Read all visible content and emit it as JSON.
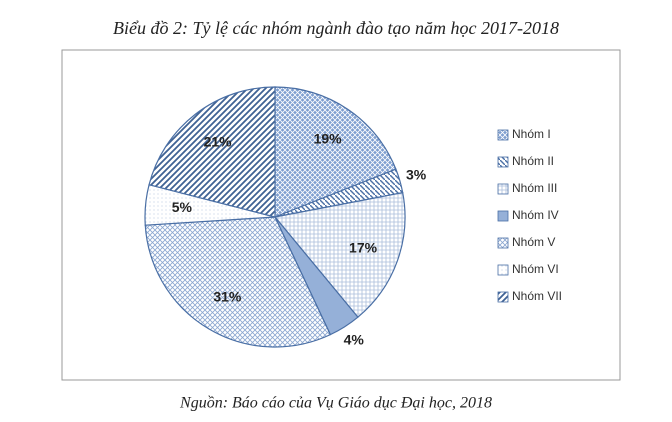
{
  "chart_data": {
    "type": "pie",
    "title": "Biểu đồ 2: Tỷ lệ các nhóm ngành đào tạo năm học 2017-2018",
    "categories": [
      "Nhóm I",
      "Nhóm II",
      "Nhóm III",
      "Nhóm IV",
      "Nhóm V",
      "Nhóm VI",
      "Nhóm VII"
    ],
    "values": [
      19,
      3,
      17,
      4,
      31,
      5,
      21
    ],
    "value_labels": [
      "19%",
      "3%",
      "17%",
      "4%",
      "31%",
      "5%",
      "21%"
    ],
    "source": "Nguồn: Báo cáo của Vụ Giáo dục Đại học, 2018",
    "legend": "right"
  }
}
